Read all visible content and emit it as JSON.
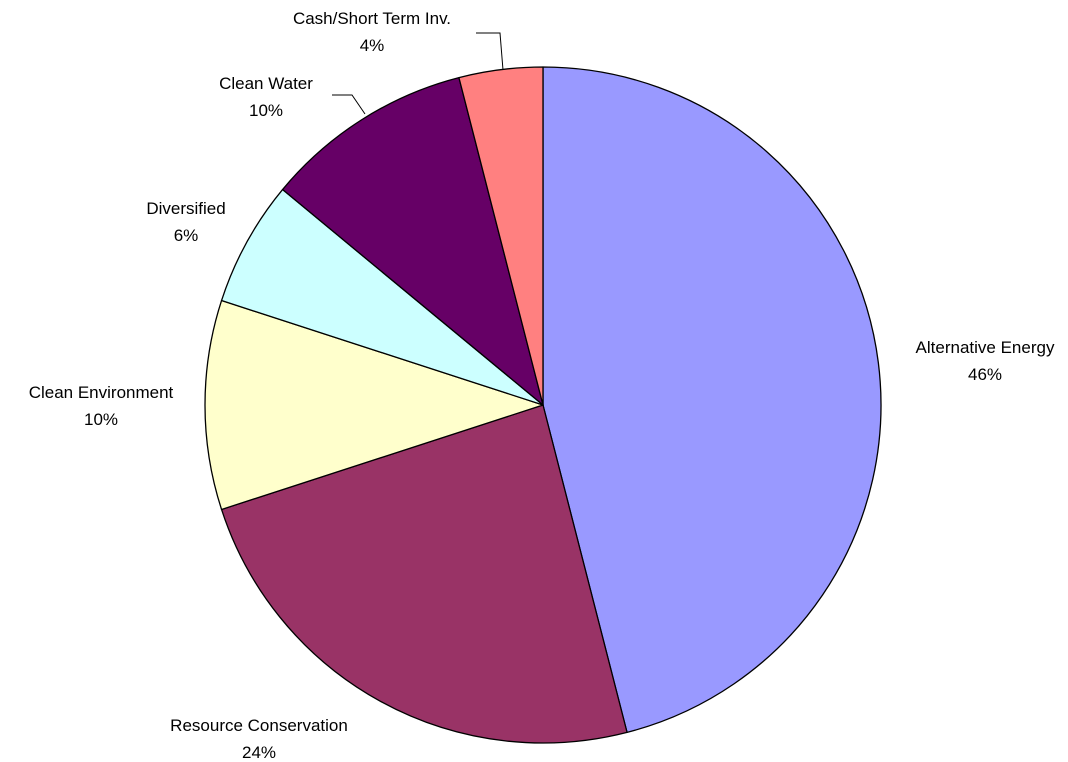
{
  "chart_data": {
    "type": "pie",
    "title": "",
    "legend": "none",
    "start_angle_deg": 0,
    "direction": "clockwise",
    "slices": [
      {
        "name": "Alternative Energy",
        "value": 46,
        "percent_label": "46%",
        "color": "#9999ff"
      },
      {
        "name": "Resource Conservation",
        "value": 24,
        "percent_label": "24%",
        "color": "#993366"
      },
      {
        "name": "Clean Environment",
        "value": 10,
        "percent_label": "10%",
        "color": "#ffffcc"
      },
      {
        "name": "Diversified",
        "value": 6,
        "percent_label": "6%",
        "color": "#ccffff"
      },
      {
        "name": "Clean Water",
        "value": 10,
        "percent_label": "10%",
        "color": "#660066"
      },
      {
        "name": "Cash/Short Term Inv.",
        "value": 4,
        "percent_label": "4%",
        "color": "#ff8080"
      }
    ]
  }
}
